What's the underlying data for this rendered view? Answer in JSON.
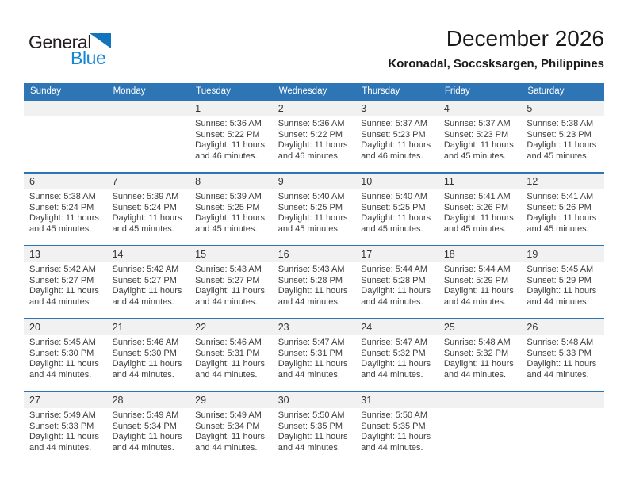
{
  "logo": {
    "part1": "General",
    "part2": "Blue"
  },
  "header": {
    "title": "December 2026",
    "subtitle": "Koronadal, Soccsksargen, Philippines"
  },
  "colors": {
    "accent_blue": "#2e75b5",
    "band_gray": "#f1f1f1",
    "logo_black": "#231f20",
    "logo_blue": "#1786d3",
    "cell_text": "#3d3d3d"
  },
  "calendar": {
    "weekday_headers": [
      "Sunday",
      "Monday",
      "Tuesday",
      "Wednesday",
      "Thursday",
      "Friday",
      "Saturday"
    ],
    "labels": {
      "sunrise": "Sunrise:",
      "sunset": "Sunset:",
      "daylight": "Daylight:"
    },
    "weeks": [
      [
        null,
        null,
        {
          "n": "1",
          "sunrise": "5:36 AM",
          "sunset": "5:22 PM",
          "daylight_hours": "11 hours",
          "daylight_rest": "and 46 minutes."
        },
        {
          "n": "2",
          "sunrise": "5:36 AM",
          "sunset": "5:22 PM",
          "daylight_hours": "11 hours",
          "daylight_rest": "and 46 minutes."
        },
        {
          "n": "3",
          "sunrise": "5:37 AM",
          "sunset": "5:23 PM",
          "daylight_hours": "11 hours",
          "daylight_rest": "and 46 minutes."
        },
        {
          "n": "4",
          "sunrise": "5:37 AM",
          "sunset": "5:23 PM",
          "daylight_hours": "11 hours",
          "daylight_rest": "and 45 minutes."
        },
        {
          "n": "5",
          "sunrise": "5:38 AM",
          "sunset": "5:23 PM",
          "daylight_hours": "11 hours",
          "daylight_rest": "and 45 minutes."
        }
      ],
      [
        {
          "n": "6",
          "sunrise": "5:38 AM",
          "sunset": "5:24 PM",
          "daylight_hours": "11 hours",
          "daylight_rest": "and 45 minutes."
        },
        {
          "n": "7",
          "sunrise": "5:39 AM",
          "sunset": "5:24 PM",
          "daylight_hours": "11 hours",
          "daylight_rest": "and 45 minutes."
        },
        {
          "n": "8",
          "sunrise": "5:39 AM",
          "sunset": "5:25 PM",
          "daylight_hours": "11 hours",
          "daylight_rest": "and 45 minutes."
        },
        {
          "n": "9",
          "sunrise": "5:40 AM",
          "sunset": "5:25 PM",
          "daylight_hours": "11 hours",
          "daylight_rest": "and 45 minutes."
        },
        {
          "n": "10",
          "sunrise": "5:40 AM",
          "sunset": "5:25 PM",
          "daylight_hours": "11 hours",
          "daylight_rest": "and 45 minutes."
        },
        {
          "n": "11",
          "sunrise": "5:41 AM",
          "sunset": "5:26 PM",
          "daylight_hours": "11 hours",
          "daylight_rest": "and 45 minutes."
        },
        {
          "n": "12",
          "sunrise": "5:41 AM",
          "sunset": "5:26 PM",
          "daylight_hours": "11 hours",
          "daylight_rest": "and 45 minutes."
        }
      ],
      [
        {
          "n": "13",
          "sunrise": "5:42 AM",
          "sunset": "5:27 PM",
          "daylight_hours": "11 hours",
          "daylight_rest": "and 44 minutes."
        },
        {
          "n": "14",
          "sunrise": "5:42 AM",
          "sunset": "5:27 PM",
          "daylight_hours": "11 hours",
          "daylight_rest": "and 44 minutes."
        },
        {
          "n": "15",
          "sunrise": "5:43 AM",
          "sunset": "5:27 PM",
          "daylight_hours": "11 hours",
          "daylight_rest": "and 44 minutes."
        },
        {
          "n": "16",
          "sunrise": "5:43 AM",
          "sunset": "5:28 PM",
          "daylight_hours": "11 hours",
          "daylight_rest": "and 44 minutes."
        },
        {
          "n": "17",
          "sunrise": "5:44 AM",
          "sunset": "5:28 PM",
          "daylight_hours": "11 hours",
          "daylight_rest": "and 44 minutes."
        },
        {
          "n": "18",
          "sunrise": "5:44 AM",
          "sunset": "5:29 PM",
          "daylight_hours": "11 hours",
          "daylight_rest": "and 44 minutes."
        },
        {
          "n": "19",
          "sunrise": "5:45 AM",
          "sunset": "5:29 PM",
          "daylight_hours": "11 hours",
          "daylight_rest": "and 44 minutes."
        }
      ],
      [
        {
          "n": "20",
          "sunrise": "5:45 AM",
          "sunset": "5:30 PM",
          "daylight_hours": "11 hours",
          "daylight_rest": "and 44 minutes."
        },
        {
          "n": "21",
          "sunrise": "5:46 AM",
          "sunset": "5:30 PM",
          "daylight_hours": "11 hours",
          "daylight_rest": "and 44 minutes."
        },
        {
          "n": "22",
          "sunrise": "5:46 AM",
          "sunset": "5:31 PM",
          "daylight_hours": "11 hours",
          "daylight_rest": "and 44 minutes."
        },
        {
          "n": "23",
          "sunrise": "5:47 AM",
          "sunset": "5:31 PM",
          "daylight_hours": "11 hours",
          "daylight_rest": "and 44 minutes."
        },
        {
          "n": "24",
          "sunrise": "5:47 AM",
          "sunset": "5:32 PM",
          "daylight_hours": "11 hours",
          "daylight_rest": "and 44 minutes."
        },
        {
          "n": "25",
          "sunrise": "5:48 AM",
          "sunset": "5:32 PM",
          "daylight_hours": "11 hours",
          "daylight_rest": "and 44 minutes."
        },
        {
          "n": "26",
          "sunrise": "5:48 AM",
          "sunset": "5:33 PM",
          "daylight_hours": "11 hours",
          "daylight_rest": "and 44 minutes."
        }
      ],
      [
        {
          "n": "27",
          "sunrise": "5:49 AM",
          "sunset": "5:33 PM",
          "daylight_hours": "11 hours",
          "daylight_rest": "and 44 minutes."
        },
        {
          "n": "28",
          "sunrise": "5:49 AM",
          "sunset": "5:34 PM",
          "daylight_hours": "11 hours",
          "daylight_rest": "and 44 minutes."
        },
        {
          "n": "29",
          "sunrise": "5:49 AM",
          "sunset": "5:34 PM",
          "daylight_hours": "11 hours",
          "daylight_rest": "and 44 minutes."
        },
        {
          "n": "30",
          "sunrise": "5:50 AM",
          "sunset": "5:35 PM",
          "daylight_hours": "11 hours",
          "daylight_rest": "and 44 minutes."
        },
        {
          "n": "31",
          "sunrise": "5:50 AM",
          "sunset": "5:35 PM",
          "daylight_hours": "11 hours",
          "daylight_rest": "and 44 minutes."
        },
        null,
        null
      ]
    ]
  }
}
